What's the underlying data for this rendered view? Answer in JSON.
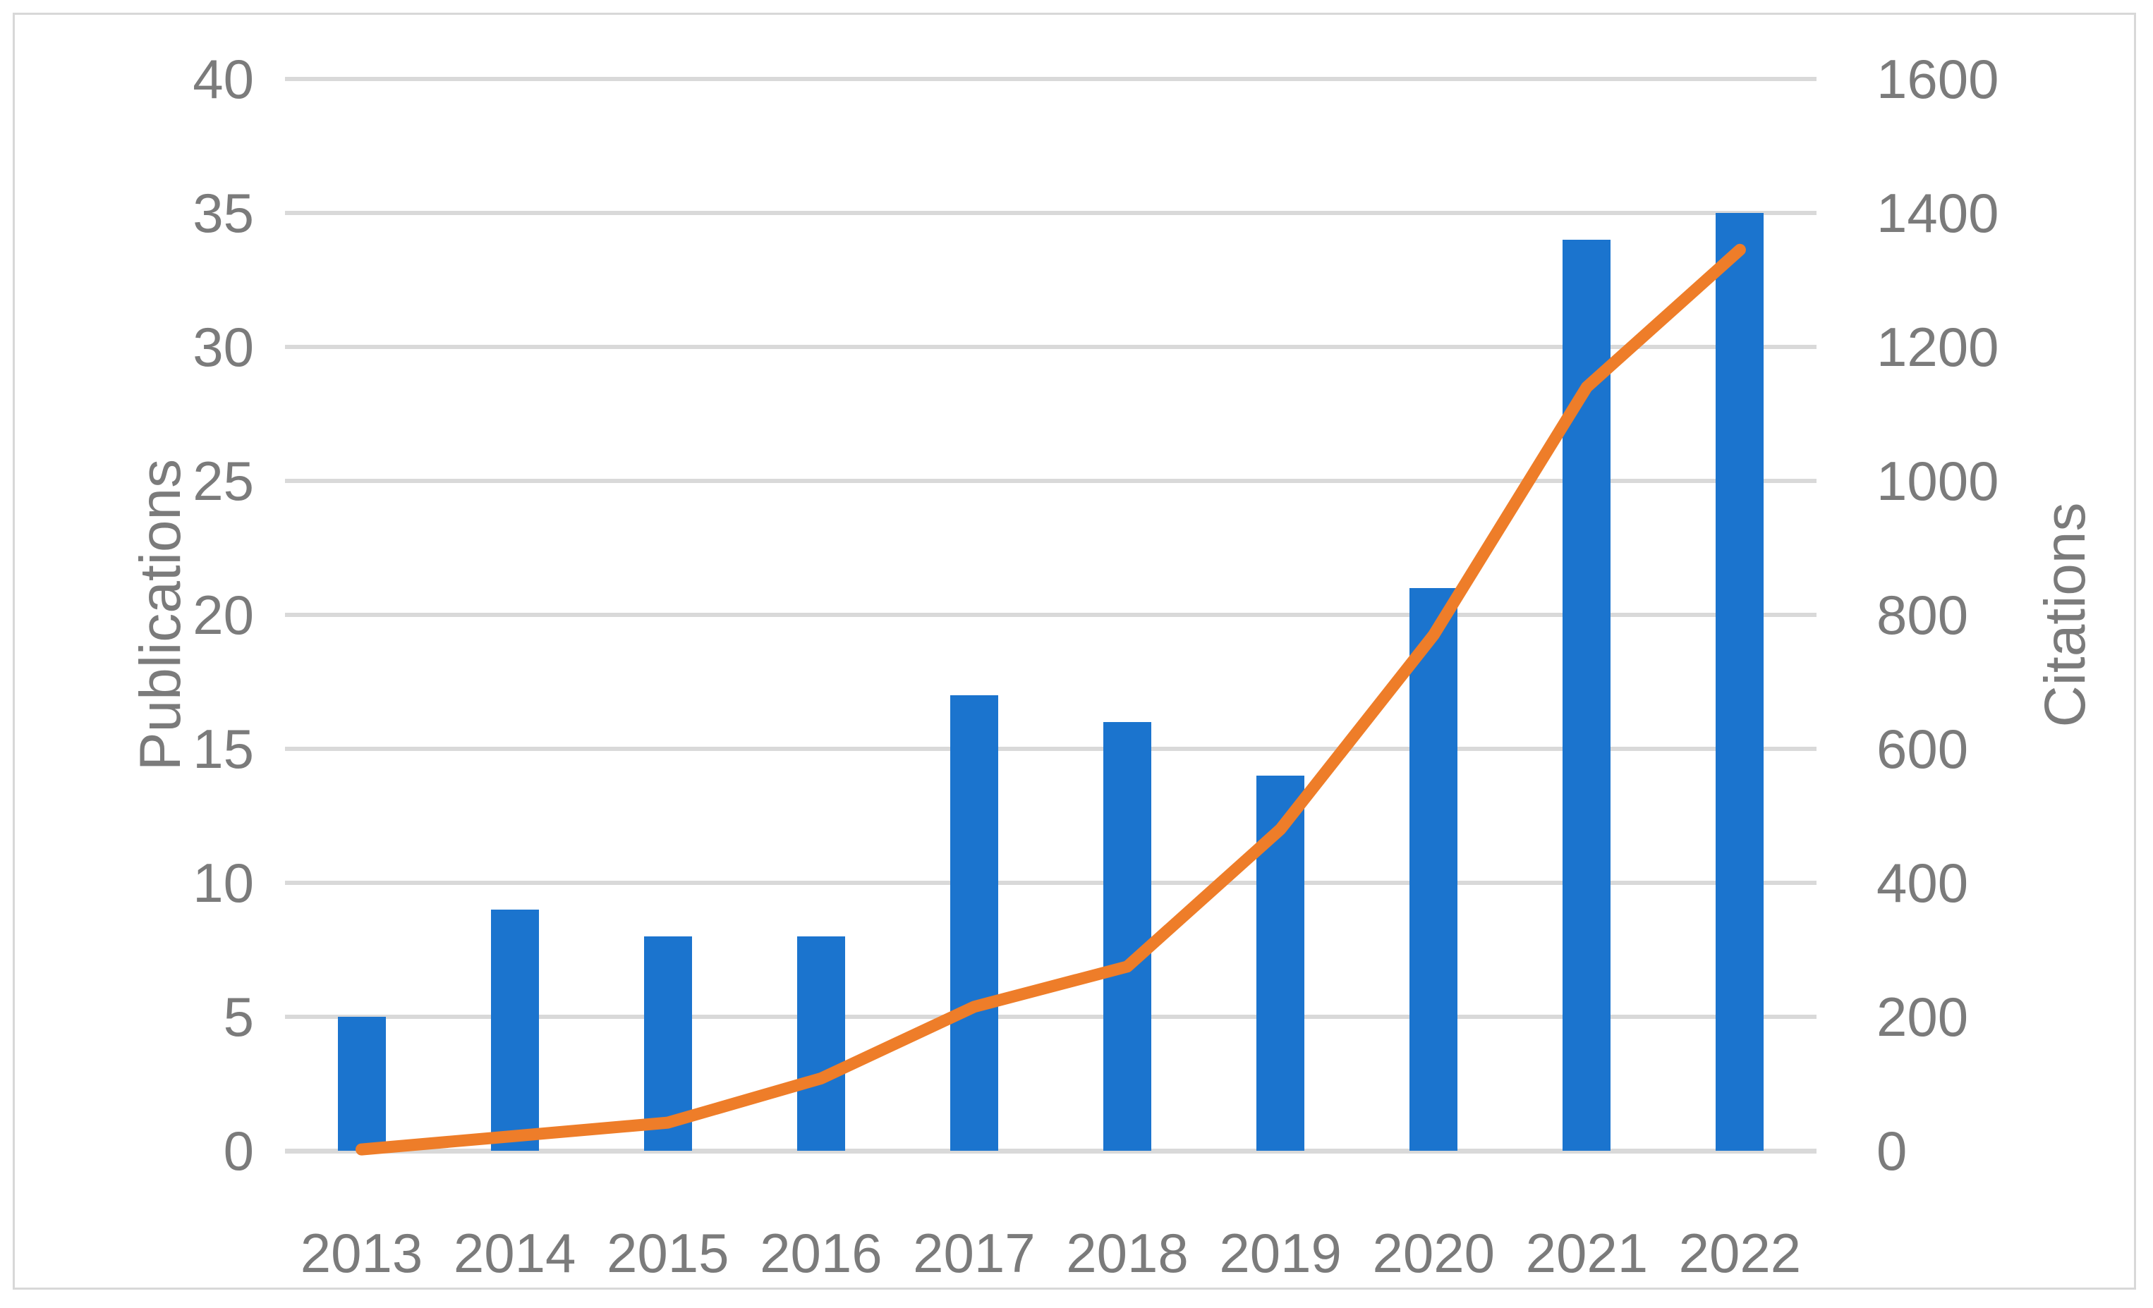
{
  "figure": {
    "background": "#ffffff",
    "border_color": "#d8d8d8",
    "gridline_color": "#d9d9d9",
    "text_color": "#7b7b7b"
  },
  "chart_data": {
    "type": "combo-bar-line",
    "title": "",
    "categories": [
      "2013",
      "2014",
      "2015",
      "2016",
      "2017",
      "2018",
      "2019",
      "2020",
      "2021",
      "2022"
    ],
    "series": [
      {
        "name": "Publications",
        "type": "bar",
        "axis": "left",
        "color": "#1b74ce",
        "values": [
          5,
          9,
          8,
          8,
          17,
          16,
          14,
          21,
          34,
          35
        ]
      },
      {
        "name": "Citations",
        "type": "line",
        "axis": "right",
        "color": "#ee7d29",
        "values": [
          2,
          22,
          42,
          108,
          215,
          275,
          480,
          770,
          1140,
          1345
        ]
      }
    ],
    "left_axis": {
      "title": "Publications",
      "min": 0,
      "max": 40,
      "step": 5,
      "ticks": [
        "0",
        "5",
        "10",
        "15",
        "20",
        "25",
        "30",
        "35",
        "40"
      ]
    },
    "right_axis": {
      "title": "Citations",
      "min": 0,
      "max": 1600,
      "step": 200,
      "ticks": [
        "0",
        "200",
        "400",
        "600",
        "800",
        "1000",
        "1200",
        "1400",
        "1600"
      ]
    },
    "grid": true,
    "legend_position": "none"
  }
}
